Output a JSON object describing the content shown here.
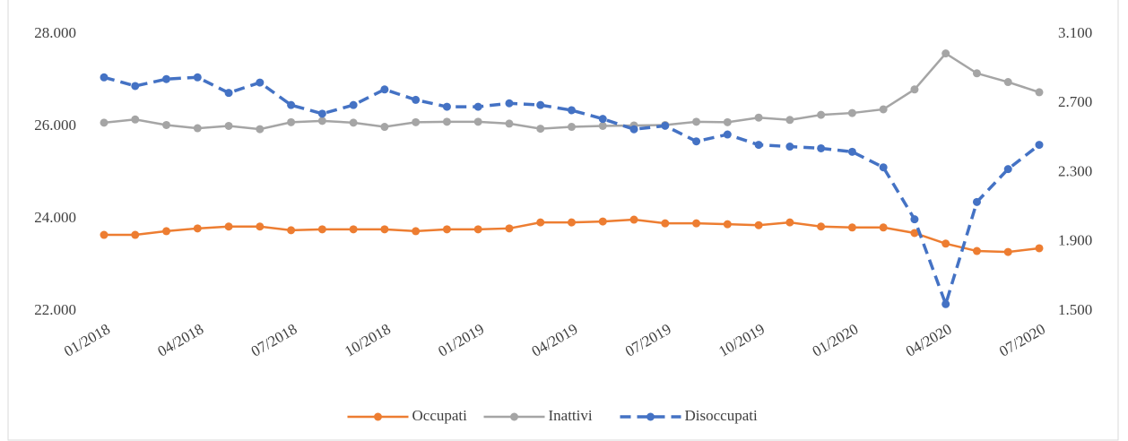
{
  "chart_data": {
    "type": "line",
    "categories": [
      "01/2018",
      null,
      null,
      "04/2018",
      null,
      null,
      "07/2018",
      null,
      null,
      "10/2018",
      null,
      null,
      "01/2019",
      null,
      null,
      "04/2019",
      null,
      null,
      "07/2019",
      null,
      null,
      "10/2019",
      null,
      null,
      "01/2020",
      null,
      null,
      "04/2020",
      null,
      null,
      "07/2020"
    ],
    "ylim": [
      22000,
      28000
    ],
    "yticks": [
      {
        "value": 22000,
        "label": "22.000"
      },
      {
        "value": 24000,
        "label": "24.000"
      },
      {
        "value": 26000,
        "label": "26.000"
      },
      {
        "value": 28000,
        "label": "28.000"
      }
    ],
    "y2lim": [
      1500,
      3100
    ],
    "y2ticks": [
      {
        "value": 1500,
        "label": "1.500"
      },
      {
        "value": 1900,
        "label": "1.900"
      },
      {
        "value": 2300,
        "label": "2.300"
      },
      {
        "value": 2700,
        "label": "2.700"
      },
      {
        "value": 3100,
        "label": "3.100"
      }
    ],
    "legend": "bottom",
    "series": [
      {
        "name": "Occupati",
        "color": "#ed7d31",
        "dash": false,
        "values": [
          23650,
          23650,
          23730,
          23790,
          23830,
          23830,
          23750,
          23770,
          23770,
          23770,
          23730,
          23770,
          23770,
          23790,
          23920,
          23920,
          23940,
          23980,
          23900,
          23900,
          23880,
          23860,
          23920,
          23830,
          23810,
          23810,
          23690,
          23460,
          23300,
          23280,
          23360
        ]
      },
      {
        "name": "Inattivi",
        "color": "#a5a5a5",
        "dash": false,
        "values": [
          26080,
          26150,
          26030,
          25960,
          26010,
          25940,
          26090,
          26120,
          26080,
          25990,
          26090,
          26100,
          26100,
          26060,
          25950,
          25990,
          26010,
          26020,
          26030,
          26100,
          26090,
          26190,
          26140,
          26250,
          26290,
          26370,
          26800,
          27580,
          27150,
          26960,
          26740
        ]
      },
      {
        "name": "Disoccupati",
        "color": "#4472c4",
        "dash": true,
        "axis": "y2",
        "values": [
          2850,
          2800,
          2840,
          2850,
          2760,
          2820,
          2690,
          2640,
          2690,
          2780,
          2720,
          2680,
          2680,
          2700,
          2690,
          2660,
          2610,
          2550,
          2570,
          2480,
          2520,
          2460,
          2450,
          2440,
          2420,
          2330,
          2030,
          1540,
          2130,
          2320,
          2460
        ]
      }
    ]
  }
}
